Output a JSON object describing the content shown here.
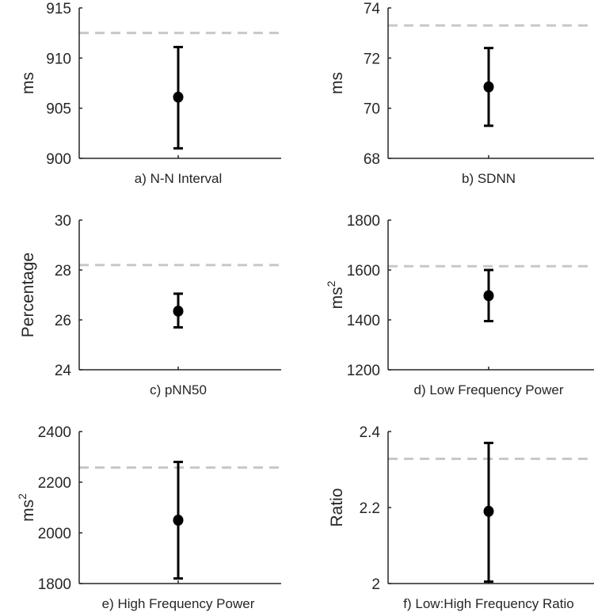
{
  "chart_data": [
    {
      "type": "scatter",
      "title": "a) N-N Interval",
      "ylabel": "ms",
      "ylabel_sup": "",
      "ylim": [
        900,
        915
      ],
      "yticks": [
        900,
        905,
        910,
        915
      ],
      "yticklabels": [
        "900",
        "905",
        "910",
        "915"
      ],
      "mean": 906.1,
      "lower": 901.0,
      "upper": 911.1,
      "reference": 912.5
    },
    {
      "type": "scatter",
      "title": "b) SDNN",
      "ylabel": "ms",
      "ylabel_sup": "",
      "ylim": [
        68,
        74
      ],
      "yticks": [
        68,
        70,
        72,
        74
      ],
      "yticklabels": [
        "68",
        "70",
        "72",
        "74"
      ],
      "mean": 70.85,
      "lower": 69.3,
      "upper": 72.4,
      "reference": 73.3
    },
    {
      "type": "scatter",
      "title": "c) pNN50",
      "ylabel": "Percentage",
      "ylabel_sup": "",
      "ylim": [
        24,
        30
      ],
      "yticks": [
        24,
        26,
        28,
        30
      ],
      "yticklabels": [
        "24",
        "26",
        "28",
        "30"
      ],
      "mean": 26.35,
      "lower": 25.7,
      "upper": 27.05,
      "reference": 28.2
    },
    {
      "type": "scatter",
      "title": "d) Low Frequency Power",
      "ylabel": "ms",
      "ylabel_sup": "2",
      "ylim": [
        1200,
        1800
      ],
      "yticks": [
        1200,
        1400,
        1600,
        1800
      ],
      "yticklabels": [
        "1200",
        "1400",
        "1600",
        "1800"
      ],
      "mean": 1497,
      "lower": 1395,
      "upper": 1600,
      "reference": 1615
    },
    {
      "type": "scatter",
      "title": "e) High Frequency Power",
      "ylabel": "ms",
      "ylabel_sup": "2",
      "ylim": [
        1800,
        2400
      ],
      "yticks": [
        1800,
        2000,
        2200,
        2400
      ],
      "yticklabels": [
        "1800",
        "2000",
        "2200",
        "2400"
      ],
      "mean": 2050,
      "lower": 1820,
      "upper": 2280,
      "reference": 2258
    },
    {
      "type": "scatter",
      "title": "f) Low:High Frequency Ratio",
      "ylabel": "Ratio",
      "ylabel_sup": "",
      "ylim": [
        2,
        2.4
      ],
      "yticks": [
        2,
        2.2,
        2.4
      ],
      "yticklabels": [
        "2",
        "2.2",
        "2.4"
      ],
      "mean": 2.19,
      "lower": 2.005,
      "upper": 2.37,
      "reference": 2.328
    }
  ],
  "colors": {
    "marker": "#000000",
    "reference": "#c8c8c8",
    "axis": "#262626"
  }
}
